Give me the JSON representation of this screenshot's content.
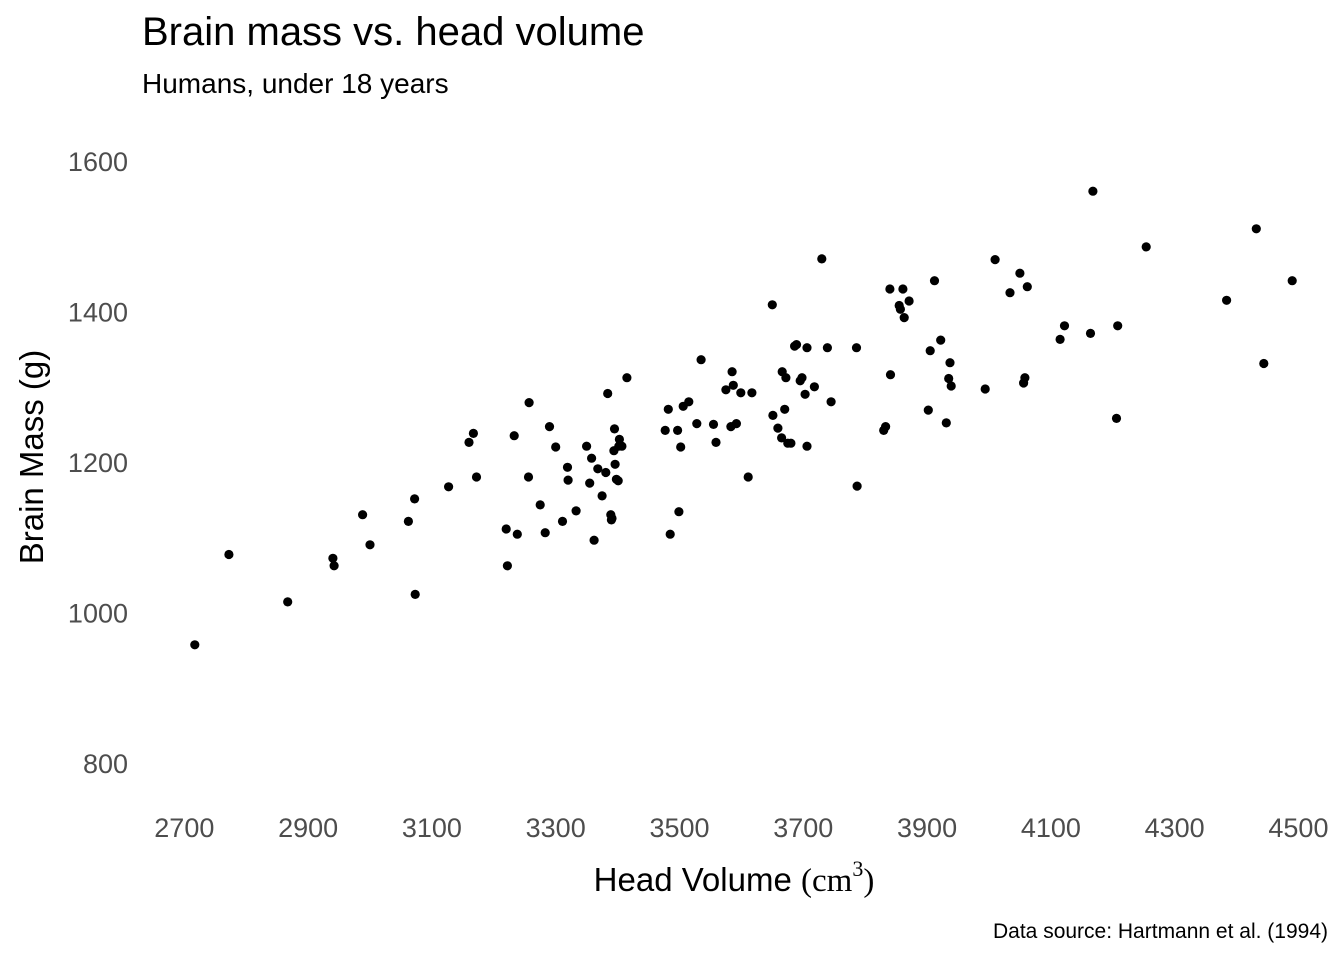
{
  "chart_data": {
    "type": "scatter",
    "title": "Brain mass vs. head volume",
    "subtitle": "Humans, under 18 years",
    "caption": "Data source: Hartmann et al. (1994)",
    "xlabel": "Head Volume",
    "xlabel_unit_base": "cm",
    "xlabel_unit_exp": "3",
    "ylabel": "Brain Mass (g)",
    "xlim": [
      2630,
      4530
    ],
    "ylim": [
      760,
      1640
    ],
    "x_ticks": [
      2700,
      2900,
      3100,
      3300,
      3500,
      3700,
      3900,
      4100,
      4300,
      4500
    ],
    "y_ticks": [
      800,
      1000,
      1200,
      1400,
      1600
    ],
    "grid": false,
    "point_color": "#000000",
    "points": [
      [
        2717,
        957
      ],
      [
        2772,
        1077
      ],
      [
        2867,
        1014
      ],
      [
        2940,
        1072
      ],
      [
        2942,
        1062
      ],
      [
        2988,
        1130
      ],
      [
        3000,
        1090
      ],
      [
        3062,
        1121
      ],
      [
        3072,
        1151
      ],
      [
        3073,
        1024
      ],
      [
        3127,
        1167
      ],
      [
        3160,
        1226
      ],
      [
        3167,
        1238
      ],
      [
        3172,
        1180
      ],
      [
        3220,
        1111
      ],
      [
        3222,
        1062
      ],
      [
        3233,
        1235
      ],
      [
        3238,
        1104
      ],
      [
        3256,
        1180
      ],
      [
        3257,
        1279
      ],
      [
        3275,
        1143
      ],
      [
        3283,
        1106
      ],
      [
        3290,
        1247
      ],
      [
        3300,
        1220
      ],
      [
        3311,
        1121
      ],
      [
        3319,
        1193
      ],
      [
        3320,
        1176
      ],
      [
        3333,
        1135
      ],
      [
        3350,
        1221
      ],
      [
        3355,
        1172
      ],
      [
        3358,
        1205
      ],
      [
        3362,
        1096
      ],
      [
        3368,
        1191
      ],
      [
        3375,
        1155
      ],
      [
        3381,
        1186
      ],
      [
        3384,
        1291
      ],
      [
        3389,
        1130
      ],
      [
        3390,
        1123
      ],
      [
        3391,
        1125
      ],
      [
        3394,
        1215
      ],
      [
        3395,
        1244
      ],
      [
        3396,
        1197
      ],
      [
        3398,
        1177
      ],
      [
        3401,
        1175
      ],
      [
        3402,
        1221
      ],
      [
        3403,
        1230
      ],
      [
        3407,
        1221
      ],
      [
        3415,
        1312
      ],
      [
        3477,
        1242
      ],
      [
        3482,
        1270
      ],
      [
        3485,
        1104
      ],
      [
        3497,
        1242
      ],
      [
        3499,
        1134
      ],
      [
        3502,
        1220
      ],
      [
        3506,
        1274
      ],
      [
        3515,
        1280
      ],
      [
        3528,
        1251
      ],
      [
        3535,
        1336
      ],
      [
        3555,
        1250
      ],
      [
        3559,
        1226
      ],
      [
        3575,
        1296
      ],
      [
        3583,
        1247
      ],
      [
        3585,
        1320
      ],
      [
        3587,
        1302
      ],
      [
        3592,
        1251
      ],
      [
        3599,
        1292
      ],
      [
        3611,
        1180
      ],
      [
        3617,
        1292
      ],
      [
        3650,
        1409
      ],
      [
        3651,
        1262
      ],
      [
        3659,
        1245
      ],
      [
        3665,
        1232
      ],
      [
        3666,
        1320
      ],
      [
        3670,
        1270
      ],
      [
        3672,
        1312
      ],
      [
        3675,
        1225
      ],
      [
        3680,
        1225
      ],
      [
        3686,
        1354
      ],
      [
        3689,
        1356
      ],
      [
        3695,
        1308
      ],
      [
        3698,
        1312
      ],
      [
        3703,
        1290
      ],
      [
        3706,
        1352
      ],
      [
        3706,
        1221
      ],
      [
        3718,
        1300
      ],
      [
        3730,
        1470
      ],
      [
        3739,
        1352
      ],
      [
        3745,
        1280
      ],
      [
        3786,
        1352
      ],
      [
        3787,
        1168
      ],
      [
        3830,
        1242
      ],
      [
        3833,
        1247
      ],
      [
        3840,
        1430
      ],
      [
        3841,
        1316
      ],
      [
        3855,
        1408
      ],
      [
        3857,
        1403
      ],
      [
        3861,
        1430
      ],
      [
        3863,
        1392
      ],
      [
        3871,
        1414
      ],
      [
        3902,
        1269
      ],
      [
        3905,
        1348
      ],
      [
        3912,
        1441
      ],
      [
        3922,
        1362
      ],
      [
        3931,
        1252
      ],
      [
        3935,
        1311
      ],
      [
        3937,
        1332
      ],
      [
        3939,
        1301
      ],
      [
        3994,
        1297
      ],
      [
        4010,
        1469
      ],
      [
        4034,
        1425
      ],
      [
        4050,
        1451
      ],
      [
        4056,
        1305
      ],
      [
        4058,
        1312
      ],
      [
        4062,
        1433
      ],
      [
        4115,
        1363
      ],
      [
        4122,
        1381
      ],
      [
        4164,
        1371
      ],
      [
        4168,
        1560
      ],
      [
        4206,
        1258
      ],
      [
        4208,
        1381
      ],
      [
        4254,
        1486
      ],
      [
        4384,
        1415
      ],
      [
        4432,
        1510
      ],
      [
        4444,
        1331
      ],
      [
        4490,
        1441
      ]
    ]
  }
}
